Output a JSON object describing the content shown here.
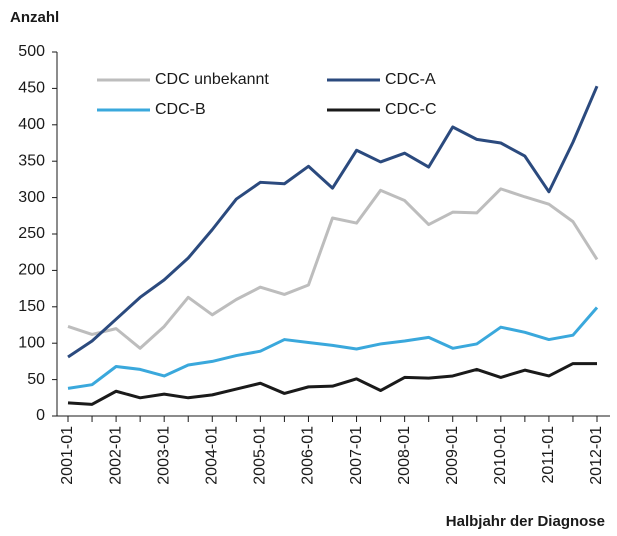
{
  "chart_data": {
    "type": "line",
    "y_label": "Anzahl",
    "x_label": "Halbjahr der Diagnose",
    "categories": [
      "2001-01",
      null,
      "2002-01",
      null,
      "2003-01",
      null,
      "2004-01",
      null,
      "2005-01",
      null,
      "2006-01",
      null,
      "2007-01",
      null,
      "2008-01",
      null,
      "2009-01",
      null,
      "2010-01",
      null,
      "2011-01",
      null,
      "2012-01"
    ],
    "ylim": [
      0,
      500
    ],
    "yticks": [
      0,
      50,
      100,
      150,
      200,
      250,
      300,
      350,
      400,
      450,
      500
    ],
    "series": [
      {
        "name": "CDC unbekannt",
        "color": "#bdbdbd",
        "values": [
          123,
          112,
          120,
          93,
          123,
          163,
          139,
          160,
          177,
          167,
          180,
          272,
          265,
          310,
          296,
          263,
          280,
          279,
          312,
          301,
          291,
          267,
          215
        ]
      },
      {
        "name": "CDC-A",
        "color": "#2b4a7e",
        "values": [
          81,
          103,
          133,
          163,
          187,
          217,
          256,
          298,
          321,
          319,
          343,
          313,
          365,
          349,
          361,
          342,
          397,
          380,
          375,
          357,
          308,
          376,
          453
        ]
      },
      {
        "name": "CDC-B",
        "color": "#3aa8dc",
        "values": [
          38,
          43,
          68,
          64,
          55,
          70,
          75,
          83,
          89,
          105,
          101,
          97,
          92,
          99,
          103,
          108,
          93,
          99,
          122,
          115,
          105,
          111,
          149
        ]
      },
      {
        "name": "CDC-C",
        "color": "#1a1a1a",
        "values": [
          18,
          16,
          34,
          25,
          30,
          25,
          29,
          37,
          45,
          31,
          40,
          41,
          51,
          35,
          53,
          52,
          55,
          64,
          53,
          63,
          55,
          72,
          72
        ]
      }
    ]
  }
}
